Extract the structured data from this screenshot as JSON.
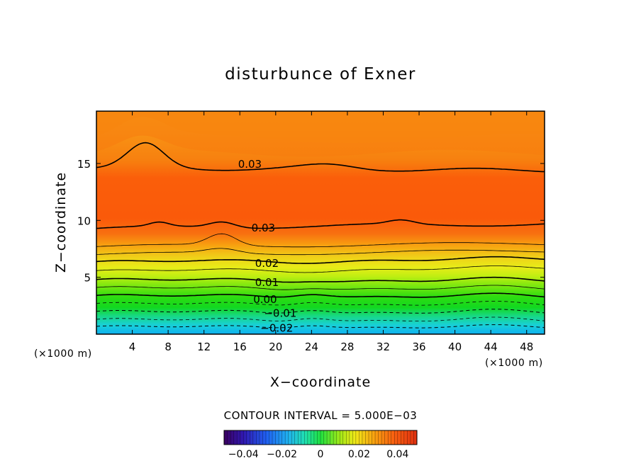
{
  "chart_data": {
    "type": "contour",
    "title": "disturbunce of Exner",
    "xlabel": "X−coordinate",
    "ylabel": "Z−coordinate",
    "x_unit_left": "(×1000 m)",
    "x_unit_right": "(×1000 m)",
    "xlim": [
      0,
      50
    ],
    "ylim": [
      0,
      19.6
    ],
    "x_ticks": [
      4,
      8,
      12,
      16,
      20,
      24,
      28,
      32,
      36,
      40,
      44,
      48
    ],
    "y_ticks": [
      5,
      10,
      15
    ],
    "contour_interval_text": "CONTOUR INTERVAL = 5.000E−03",
    "colorbar": {
      "range": [
        -0.05,
        0.05
      ],
      "tick_values": [
        -0.04,
        -0.02,
        0,
        0.02,
        0.04
      ],
      "tick_labels": [
        "−0.04",
        "−0.02",
        "0",
        "0.02",
        "0.04"
      ]
    },
    "contour_levels": [
      -0.025,
      -0.02,
      -0.015,
      -0.01,
      -0.005,
      0.0,
      0.005,
      0.01,
      0.015,
      0.02,
      0.025,
      0.03,
      0.035
    ],
    "labeled_contours": [
      {
        "label": "0.03",
        "x": 15.8,
        "z": 15.0
      },
      {
        "label": "0.03",
        "x": 17.3,
        "z": 9.4
      },
      {
        "label": "0.02",
        "x": 17.7,
        "z": 6.3
      },
      {
        "label": "0.01",
        "x": 17.7,
        "z": 4.6
      },
      {
        "label": "0.00",
        "x": 17.5,
        "z": 3.1
      },
      {
        "label": "−0.01",
        "x": 18.7,
        "z": 1.9
      },
      {
        "label": "−0.02",
        "x": 18.3,
        "z": 0.6
      }
    ],
    "colors": {
      "upper": "#f59a18",
      "core": "#fa5a0a",
      "mid": "#f0e020",
      "low": "#10e010",
      "bottom": "#10c8f0"
    }
  }
}
